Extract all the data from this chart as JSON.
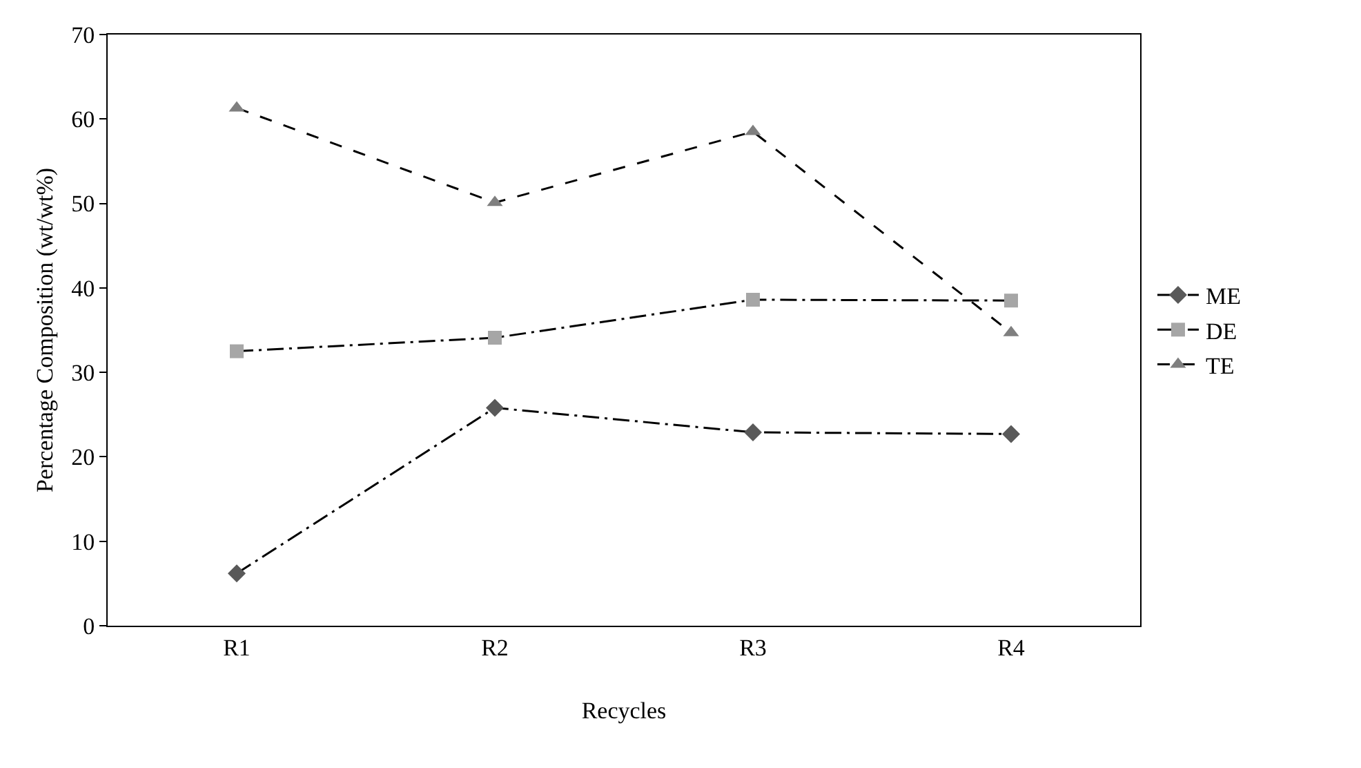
{
  "chart_data": {
    "type": "line",
    "xlabel": "Recycles",
    "ylabel": "Percentage Composition (wt/wt%)",
    "categories": [
      "R1",
      "R2",
      "R3",
      "R4"
    ],
    "series": [
      {
        "name": "ME",
        "color": "#595959",
        "marker": "diamond",
        "line_style": "dashdot",
        "values": [
          6.2,
          25.8,
          22.9,
          22.7
        ]
      },
      {
        "name": "DE",
        "color": "#a6a6a6",
        "marker": "square",
        "line_style": "dashdot",
        "values": [
          32.5,
          34.1,
          38.6,
          38.5
        ]
      },
      {
        "name": "TE",
        "color": "#7f7f7f",
        "marker": "triangle",
        "line_style": "dashed",
        "values": [
          61.3,
          50.1,
          58.5,
          34.7
        ]
      }
    ],
    "ylim": [
      0,
      70
    ],
    "yticks": [
      0,
      10,
      20,
      30,
      40,
      50,
      60,
      70
    ],
    "grid": false,
    "legend": "right"
  }
}
